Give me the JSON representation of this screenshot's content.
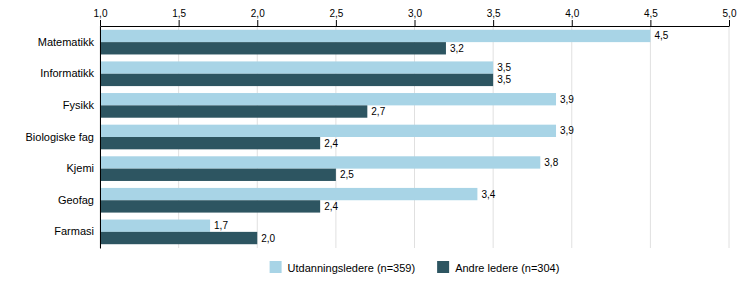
{
  "chart_data": {
    "type": "bar",
    "orientation": "horizontal",
    "categories": [
      "Matematikk",
      "Informatikk",
      "Fysikk",
      "Biologiske fag",
      "Kjemi",
      "Geofag",
      "Farmasi"
    ],
    "series": [
      {
        "name": "Utdanningsledere (n=359)",
        "color": "#a8d4e6",
        "values": [
          4.5,
          3.5,
          3.9,
          3.9,
          3.8,
          3.4,
          1.7
        ],
        "value_labels": [
          "4,5",
          "3,5",
          "3,9",
          "3,9",
          "3,8",
          "3,4",
          "1,7"
        ]
      },
      {
        "name": "Andre ledere (n=304)",
        "color": "#2d5561",
        "values": [
          3.2,
          3.5,
          2.7,
          2.4,
          2.5,
          2.4,
          2.0
        ],
        "value_labels": [
          "3,2",
          "3,5",
          "2,7",
          "2,4",
          "2,5",
          "2,4",
          "2,0"
        ]
      }
    ],
    "xlim": [
      1.0,
      5.0
    ],
    "xticks": [
      {
        "value": 1.0,
        "label": "1,0"
      },
      {
        "value": 1.5,
        "label": "1,5"
      },
      {
        "value": 2.0,
        "label": "2,0"
      },
      {
        "value": 2.5,
        "label": "2,5"
      },
      {
        "value": 3.0,
        "label": "3,0"
      },
      {
        "value": 3.5,
        "label": "3,5"
      },
      {
        "value": 4.0,
        "label": "4,0"
      },
      {
        "value": 4.5,
        "label": "4,5"
      },
      {
        "value": 5.0,
        "label": "5,0"
      }
    ],
    "grid": true,
    "data_labels": true,
    "legend": "bottom"
  }
}
